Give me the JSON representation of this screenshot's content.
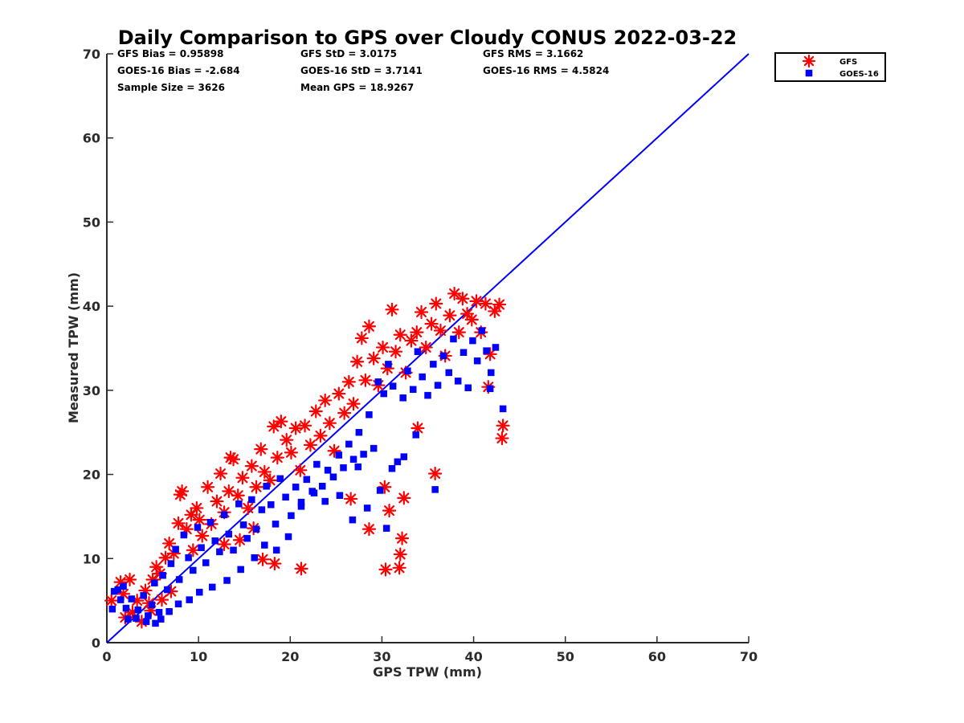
{
  "chart_data": {
    "type": "scatter",
    "title": "Daily Comparison to GPS over Cloudy CONUS 2022-03-22",
    "xlabel": "GPS TPW (mm)",
    "ylabel": "Measured TPW (mm)",
    "xlim": [
      0,
      70
    ],
    "ylim": [
      0,
      70
    ],
    "xticks": [
      0,
      10,
      20,
      30,
      40,
      50,
      60,
      70
    ],
    "yticks": [
      0,
      10,
      20,
      30,
      40,
      50,
      60,
      70
    ],
    "grid": false,
    "legend_position": "outside-top-right",
    "stats": [
      [
        "GFS Bias = 0.95898",
        "GFS StD = 3.0175",
        "GFS RMS = 3.1662"
      ],
      [
        "GOES-16 Bias = -2.684",
        "GOES-16 StD = 3.7141",
        "GOES-16 RMS = 4.5824"
      ],
      [
        "Sample Size = 3626",
        "Mean GPS = 18.9267",
        ""
      ]
    ],
    "reference_line": {
      "name": "1:1 line",
      "points": [
        [
          0,
          0
        ],
        [
          70,
          70
        ]
      ],
      "color": "#0000ff"
    },
    "series": [
      {
        "name": "GFS",
        "marker": "asterisk",
        "color": "#ff0000",
        "points": [
          [
            0.5,
            5.0
          ],
          [
            1.5,
            7.2
          ],
          [
            2.5,
            7.5
          ],
          [
            2.0,
            3.0
          ],
          [
            2.8,
            3.6
          ],
          [
            3.3,
            5.0
          ],
          [
            4.2,
            6.2
          ],
          [
            4.6,
            4.7
          ],
          [
            5.0,
            7.5
          ],
          [
            5.4,
            9.0
          ],
          [
            5.8,
            8.2
          ],
          [
            6.4,
            10.1
          ],
          [
            6.8,
            11.8
          ],
          [
            7.3,
            10.6
          ],
          [
            7.8,
            14.2
          ],
          [
            8.2,
            18.0
          ],
          [
            8.7,
            13.5
          ],
          [
            9.2,
            15.2
          ],
          [
            9.8,
            16.0
          ],
          [
            10.4,
            12.7
          ],
          [
            11.0,
            18.5
          ],
          [
            11.4,
            14.1
          ],
          [
            12.0,
            16.8
          ],
          [
            12.4,
            20.1
          ],
          [
            12.8,
            15.5
          ],
          [
            13.3,
            18.0
          ],
          [
            13.8,
            21.8
          ],
          [
            14.3,
            17.5
          ],
          [
            14.8,
            19.6
          ],
          [
            15.4,
            16.0
          ],
          [
            15.8,
            21.0
          ],
          [
            16.3,
            18.5
          ],
          [
            16.8,
            23.0
          ],
          [
            17.2,
            20.3
          ],
          [
            17.8,
            19.3
          ],
          [
            18.2,
            25.7
          ],
          [
            18.6,
            22.0
          ],
          [
            19.0,
            26.3
          ],
          [
            19.6,
            24.1
          ],
          [
            20.1,
            22.6
          ],
          [
            20.6,
            25.5
          ],
          [
            21.1,
            20.5
          ],
          [
            21.6,
            25.8
          ],
          [
            22.2,
            23.5
          ],
          [
            22.8,
            27.5
          ],
          [
            23.3,
            24.6
          ],
          [
            23.8,
            28.8
          ],
          [
            24.3,
            26.1
          ],
          [
            24.8,
            22.8
          ],
          [
            25.3,
            29.6
          ],
          [
            25.9,
            27.3
          ],
          [
            26.4,
            31.0
          ],
          [
            26.9,
            28.4
          ],
          [
            27.3,
            33.4
          ],
          [
            27.8,
            36.2
          ],
          [
            28.2,
            31.2
          ],
          [
            28.6,
            37.6
          ],
          [
            29.1,
            33.8
          ],
          [
            29.6,
            30.6
          ],
          [
            30.1,
            35.1
          ],
          [
            30.6,
            32.6
          ],
          [
            31.1,
            39.6
          ],
          [
            31.5,
            34.6
          ],
          [
            32.0,
            36.6
          ],
          [
            32.6,
            32.1
          ],
          [
            33.2,
            35.9
          ],
          [
            33.8,
            36.9
          ],
          [
            34.3,
            39.3
          ],
          [
            34.8,
            35.1
          ],
          [
            35.4,
            37.9
          ],
          [
            35.9,
            40.3
          ],
          [
            36.4,
            37.1
          ],
          [
            36.9,
            34.1
          ],
          [
            37.4,
            38.9
          ],
          [
            37.9,
            41.5
          ],
          [
            38.4,
            36.9
          ],
          [
            38.8,
            40.9
          ],
          [
            39.3,
            39.1
          ],
          [
            39.8,
            38.4
          ],
          [
            40.3,
            40.6
          ],
          [
            40.8,
            36.9
          ],
          [
            41.3,
            40.3
          ],
          [
            41.8,
            34.3
          ],
          [
            42.3,
            39.4
          ],
          [
            42.8,
            40.2
          ],
          [
            41.6,
            30.4
          ],
          [
            43.2,
            25.8
          ],
          [
            43.1,
            24.3
          ],
          [
            35.8,
            20.1
          ],
          [
            33.9,
            25.5
          ],
          [
            32.4,
            17.2
          ],
          [
            32.2,
            12.4
          ],
          [
            32.0,
            10.5
          ],
          [
            31.9,
            8.9
          ],
          [
            30.4,
            8.7
          ],
          [
            30.8,
            15.7
          ],
          [
            30.3,
            18.5
          ],
          [
            28.6,
            13.5
          ],
          [
            26.6,
            17.1
          ],
          [
            21.2,
            8.8
          ],
          [
            18.3,
            9.4
          ],
          [
            17.0,
            9.9
          ],
          [
            16.0,
            13.6
          ],
          [
            14.5,
            12.2
          ],
          [
            13.5,
            22.0
          ],
          [
            8.0,
            17.6
          ],
          [
            10.1,
            14.6
          ],
          [
            12.8,
            11.7
          ],
          [
            9.4,
            11.0
          ],
          [
            7.0,
            6.1
          ],
          [
            6.0,
            5.1
          ],
          [
            4.8,
            3.8
          ],
          [
            3.8,
            2.5
          ],
          [
            1.8,
            5.8
          ]
        ]
      },
      {
        "name": "GOES-16",
        "marker": "square",
        "color": "#0000ff",
        "points": [
          [
            0.6,
            4.0
          ],
          [
            1.2,
            6.3
          ],
          [
            1.8,
            6.7
          ],
          [
            2.3,
            2.8
          ],
          [
            2.7,
            5.2
          ],
          [
            3.4,
            3.9
          ],
          [
            4.0,
            5.6
          ],
          [
            4.3,
            2.5
          ],
          [
            4.9,
            4.5
          ],
          [
            5.2,
            7.1
          ],
          [
            5.7,
            3.6
          ],
          [
            6.1,
            8.0
          ],
          [
            6.6,
            6.3
          ],
          [
            7.0,
            9.4
          ],
          [
            7.5,
            11.1
          ],
          [
            7.9,
            7.5
          ],
          [
            8.4,
            12.8
          ],
          [
            8.9,
            10.1
          ],
          [
            9.4,
            8.6
          ],
          [
            9.9,
            13.7
          ],
          [
            10.3,
            11.3
          ],
          [
            10.8,
            9.5
          ],
          [
            11.3,
            14.3
          ],
          [
            11.8,
            12.1
          ],
          [
            12.3,
            10.8
          ],
          [
            12.8,
            15.2
          ],
          [
            13.3,
            12.9
          ],
          [
            13.8,
            11.0
          ],
          [
            14.4,
            16.5
          ],
          [
            14.9,
            14.0
          ],
          [
            15.3,
            12.4
          ],
          [
            15.8,
            17.0
          ],
          [
            16.3,
            13.5
          ],
          [
            16.9,
            15.8
          ],
          [
            17.4,
            18.6
          ],
          [
            17.9,
            16.4
          ],
          [
            18.4,
            14.1
          ],
          [
            18.9,
            19.5
          ],
          [
            19.5,
            17.3
          ],
          [
            20.1,
            15.1
          ],
          [
            20.6,
            18.5
          ],
          [
            21.2,
            16.7
          ],
          [
            21.8,
            19.4
          ],
          [
            22.4,
            18.0
          ],
          [
            22.9,
            21.2
          ],
          [
            23.5,
            18.6
          ],
          [
            24.1,
            20.5
          ],
          [
            24.7,
            19.7
          ],
          [
            25.3,
            22.3
          ],
          [
            25.8,
            20.8
          ],
          [
            26.4,
            23.6
          ],
          [
            26.9,
            21.8
          ],
          [
            27.5,
            25.0
          ],
          [
            28.0,
            22.4
          ],
          [
            28.6,
            27.1
          ],
          [
            29.1,
            23.1
          ],
          [
            29.6,
            31.0
          ],
          [
            30.2,
            29.6
          ],
          [
            30.7,
            33.1
          ],
          [
            31.2,
            30.5
          ],
          [
            31.7,
            21.5
          ],
          [
            32.3,
            29.1
          ],
          [
            32.8,
            32.3
          ],
          [
            33.4,
            30.1
          ],
          [
            33.9,
            34.6
          ],
          [
            34.4,
            31.6
          ],
          [
            35.0,
            29.4
          ],
          [
            35.6,
            33.1
          ],
          [
            36.1,
            30.6
          ],
          [
            36.7,
            34.1
          ],
          [
            37.3,
            32.1
          ],
          [
            37.8,
            36.1
          ],
          [
            38.3,
            31.1
          ],
          [
            38.9,
            34.5
          ],
          [
            39.4,
            30.3
          ],
          [
            39.9,
            35.9
          ],
          [
            40.4,
            33.5
          ],
          [
            40.9,
            37.1
          ],
          [
            41.4,
            34.7
          ],
          [
            41.9,
            32.1
          ],
          [
            42.4,
            35.1
          ],
          [
            43.2,
            27.8
          ],
          [
            41.8,
            30.2
          ],
          [
            35.8,
            18.2
          ],
          [
            33.7,
            24.7
          ],
          [
            32.4,
            22.1
          ],
          [
            31.1,
            20.7
          ],
          [
            30.5,
            13.6
          ],
          [
            29.8,
            18.1
          ],
          [
            28.4,
            16.0
          ],
          [
            26.8,
            14.6
          ],
          [
            25.4,
            17.5
          ],
          [
            23.8,
            16.8
          ],
          [
            22.6,
            17.8
          ],
          [
            21.2,
            16.2
          ],
          [
            19.8,
            12.6
          ],
          [
            18.5,
            11.0
          ],
          [
            17.2,
            11.6
          ],
          [
            16.1,
            10.1
          ],
          [
            14.6,
            8.7
          ],
          [
            13.1,
            7.4
          ],
          [
            11.5,
            6.6
          ],
          [
            10.1,
            6.0
          ],
          [
            9.0,
            5.1
          ],
          [
            7.8,
            4.6
          ],
          [
            6.8,
            3.7
          ],
          [
            5.9,
            2.8
          ],
          [
            5.3,
            2.3
          ],
          [
            4.5,
            3.2
          ],
          [
            3.2,
            2.9
          ],
          [
            2.1,
            4.1
          ],
          [
            1.5,
            5.1
          ],
          [
            0.8,
            6.1
          ],
          [
            27.4,
            20.9
          ]
        ]
      }
    ]
  }
}
